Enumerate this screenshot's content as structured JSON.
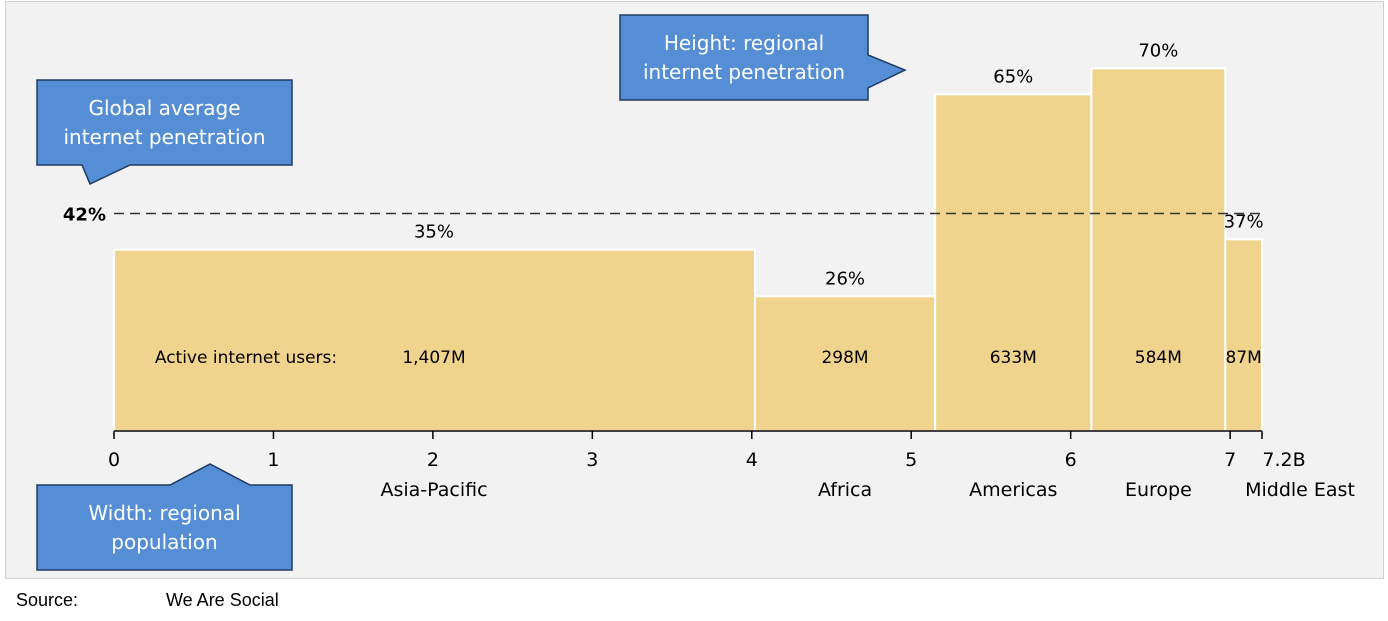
{
  "chart_data": {
    "type": "bar",
    "variant": "variable-width (marimekko)",
    "x_unit": "B",
    "x_ticks": [
      0,
      1,
      2,
      3,
      4,
      5,
      6,
      7
    ],
    "x_end_label": "7.2B",
    "xlim": [
      0,
      7.2
    ],
    "ylim": [
      0,
      0.75
    ],
    "users_row_label": "Active internet users:",
    "global_average": {
      "value": 0.42,
      "label": "42%"
    },
    "regions": [
      {
        "name": "Asia-Pacific",
        "population_start": 0.0,
        "population_end": 4.02,
        "penetration": 0.35,
        "penetration_label": "35%",
        "users_label": "1,407M"
      },
      {
        "name": "Africa",
        "population_start": 4.02,
        "population_end": 5.15,
        "penetration": 0.26,
        "penetration_label": "26%",
        "users_label": "298M"
      },
      {
        "name": "Americas",
        "population_start": 5.15,
        "population_end": 6.13,
        "penetration": 0.65,
        "penetration_label": "65%",
        "users_label": "633M"
      },
      {
        "name": "Europe",
        "population_start": 6.13,
        "population_end": 6.97,
        "penetration": 0.7,
        "penetration_label": "70%",
        "users_label": "584M"
      },
      {
        "name": "Middle East",
        "population_start": 6.97,
        "population_end": 7.2,
        "penetration": 0.37,
        "penetration_label": "37%",
        "users_label": "87M"
      }
    ],
    "callouts": {
      "global_average": "Global average\ninternet penetration",
      "height": "Height: regional\ninternet penetration",
      "width": "Width: regional\npopulation"
    },
    "colors": {
      "bar": "#f0d48e",
      "callout": "#558ed5",
      "background": "#f2f2f2"
    }
  },
  "footer": {
    "source_label": "Source:",
    "source_value": "We Are Social"
  }
}
